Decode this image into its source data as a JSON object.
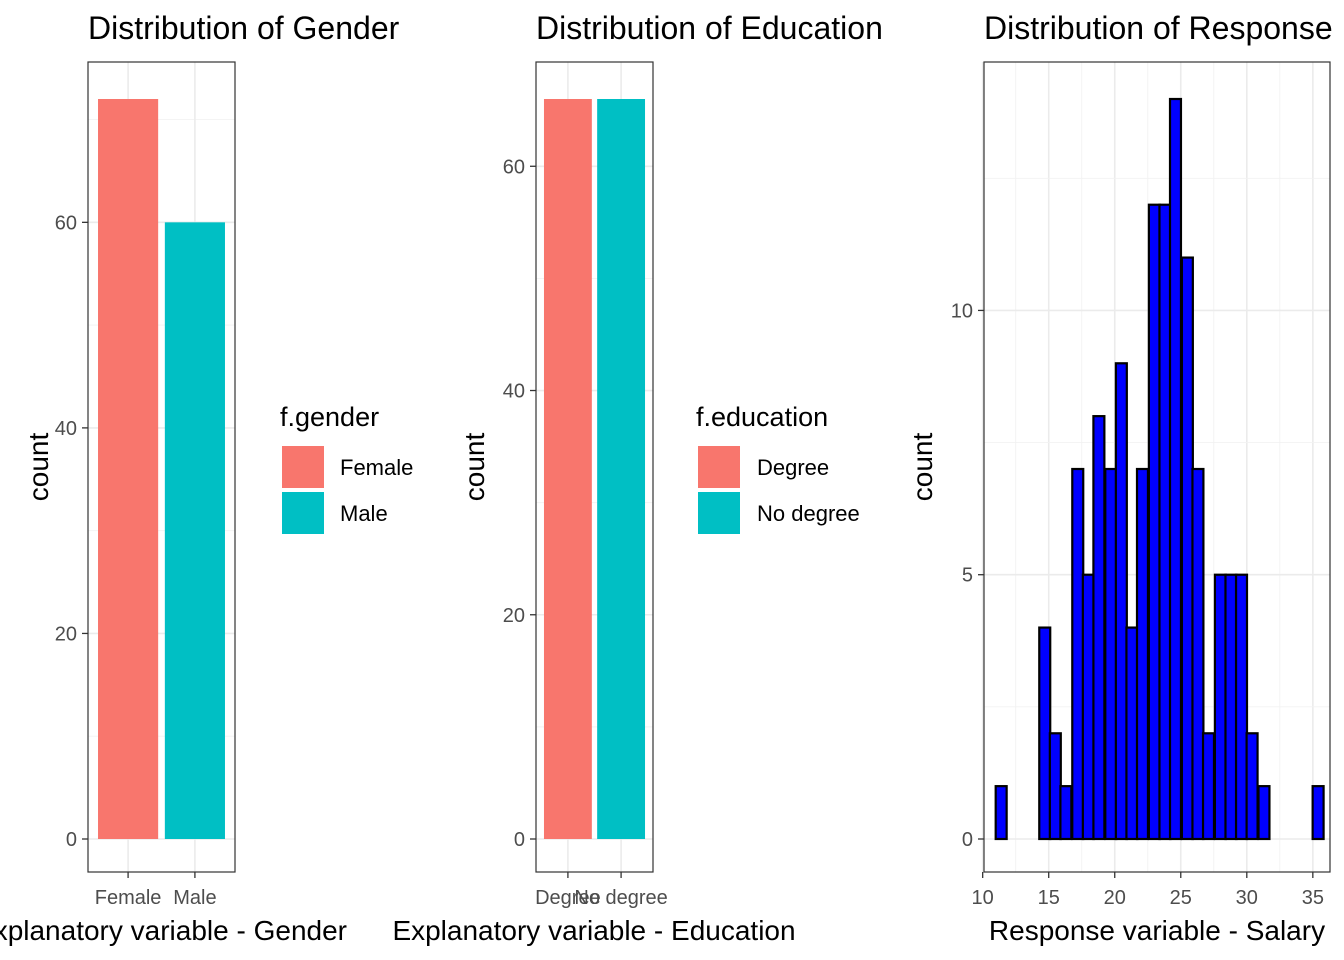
{
  "colors": {
    "female": "#F8766D",
    "male": "#00BFC4",
    "degree": "#F8766D",
    "no_degree": "#00BFC4",
    "histogram_fill": "#0000FF",
    "histogram_outline": "#000000"
  },
  "chart_data": [
    {
      "type": "bar",
      "title": "Distribution of Gender",
      "xlabel": "Explanatory variable - Gender",
      "ylabel": "count",
      "categories": [
        "Female",
        "Male"
      ],
      "values": [
        72,
        60
      ],
      "ylim": [
        0,
        75
      ],
      "yticks": [
        0,
        20,
        40,
        60
      ],
      "legend": {
        "title": "f.gender",
        "entries": [
          "Female",
          "Male"
        ],
        "placement": "right"
      },
      "grid": true
    },
    {
      "type": "bar",
      "title": "Distribution of Education",
      "xlabel": "Explanatory variable - Education",
      "ylabel": "count",
      "categories": [
        "Degree",
        "No degree"
      ],
      "values": [
        66,
        66
      ],
      "ylim": [
        0,
        69
      ],
      "yticks": [
        0,
        20,
        40,
        60
      ],
      "legend": {
        "title": "f.education",
        "entries": [
          "Degree",
          "No degree"
        ],
        "placement": "right"
      },
      "grid": true
    },
    {
      "type": "bar",
      "title": "Distribution of Response",
      "xlabel": "Response variable - Salary",
      "ylabel": "count",
      "bin_width": 0.83,
      "x": [
        11.4,
        12.2,
        13.0,
        13.9,
        14.7,
        15.5,
        16.3,
        17.2,
        18.0,
        18.8,
        19.7,
        20.5,
        21.3,
        22.1,
        23.0,
        23.8,
        24.6,
        25.5,
        26.3,
        27.1,
        28.0,
        28.8,
        29.6,
        30.4,
        31.3,
        32.1,
        32.9,
        33.8,
        34.6,
        35.4
      ],
      "values": [
        1,
        0,
        0,
        0,
        4,
        2,
        1,
        7,
        5,
        8,
        7,
        9,
        4,
        7,
        12,
        12,
        14,
        11,
        7,
        2,
        5,
        5,
        5,
        2,
        1,
        0,
        0,
        0,
        0,
        1
      ],
      "xlim": [
        10.1,
        36.3
      ],
      "ylim": [
        0,
        14.7
      ],
      "xticks": [
        10,
        15,
        20,
        25,
        30,
        35
      ],
      "yticks": [
        0,
        5,
        10
      ],
      "grid": true
    }
  ]
}
